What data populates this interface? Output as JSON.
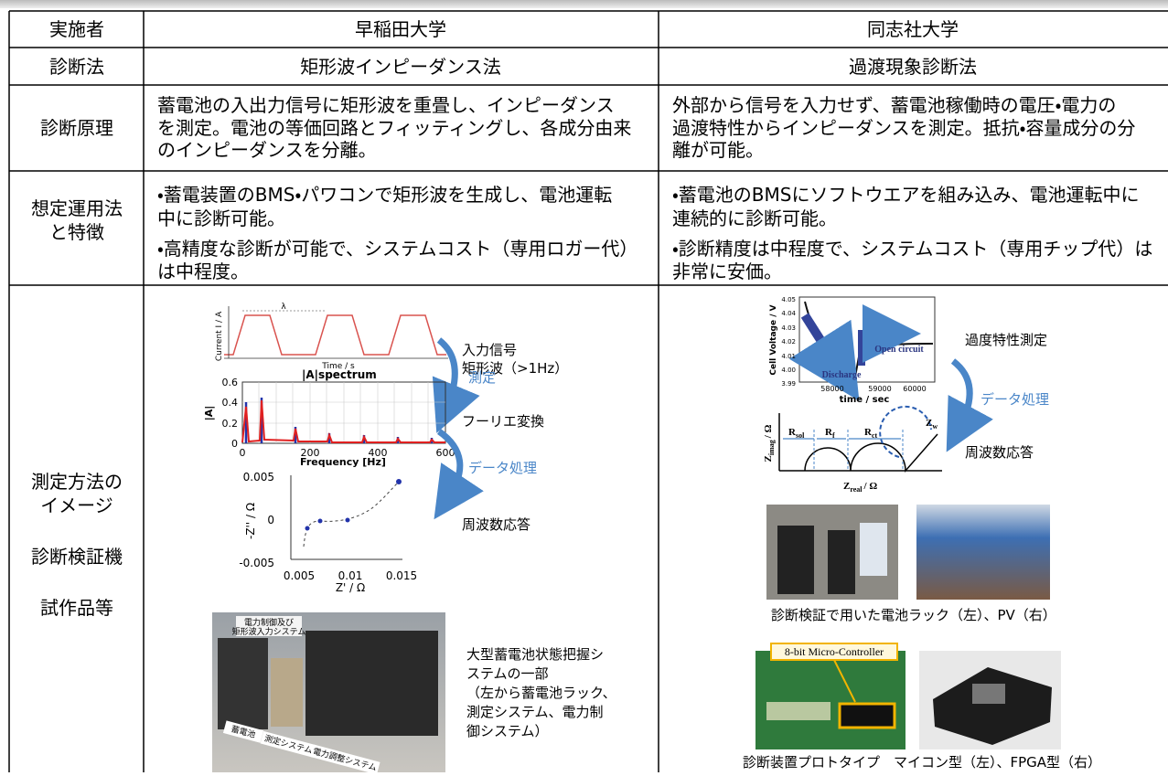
{
  "table": {
    "header": [
      "実施者",
      "早稲田大学",
      "同志社大学"
    ],
    "rows": [
      {
        "label": [
          "診断法"
        ],
        "waseda": [
          "矩形波インピーダンス法"
        ],
        "doshisha": [
          "過渡現象診断法"
        ]
      },
      {
        "label": [
          "診断原理"
        ],
        "waseda": [
          "蓄電池の入出力信号に矩形波を重畳し、インピーダンス",
          "を測定。電池の等価回路とフィッティングし、各成分由来",
          "のインピーダンスを分離。"
        ],
        "doshisha": [
          "外部から信号を入力せず、蓄電池稼働時の電圧・電力の",
          "過渡特性からインピーダンスを測定。抵抗・容量成分の分",
          "離が可能。"
        ]
      },
      {
        "label": [
          "想定運用法",
          "と特徴"
        ],
        "waseda": [
          "・蓄電装置のBMS・パワコンで矩形波を生成し、電池運転",
          "中に診断可能。",
          "・高精度な診断が可能で、システムコスト（専用ロガー代）",
          "は中程度。"
        ],
        "doshisha": [
          "・蓄電池のBMSにソフトウエアを組み込み、電池運転中に",
          "連続的に診断可能。",
          "・診断精度は中程度で、システムコスト（専用チップ代）は",
          "非常に安価。"
        ]
      }
    ]
  },
  "image_row": {
    "label": [
      "測定方法の",
      "イメージ",
      "診断検証機",
      "試作品等"
    ],
    "waseda": {
      "wave": {
        "x_label": "Time / s",
        "y_label": "Current I / A",
        "period": "λ"
      },
      "input_signal": "入力信号",
      "rect_wave": "矩形波（>1Hz）",
      "measure": "測定",
      "spectrum": {
        "title": "|A|spectrum",
        "x_label": "Frequency [Hz]",
        "y_label": "|A|",
        "yticks": [
          "0.6",
          "0.4",
          "0.2",
          "0"
        ],
        "xticks": [
          "0",
          "200",
          "400",
          "600"
        ]
      },
      "fourier": "フーリエ変換",
      "processing": "データ処理",
      "nyquist": {
        "x_label": "Z' / Ω",
        "y_label": "-Z'' / Ω",
        "yticks": [
          "0.005",
          "0",
          "-0.005"
        ],
        "xticks": [
          "0.005",
          "0.01",
          "0.015"
        ]
      },
      "freq_response": "周波数応答",
      "photo": {
        "sign": [
          "電力制御及び",
          "矩形波入力システム"
        ],
        "tags": [
          "蓄電池",
          "測定システム",
          "電力調整システム"
        ]
      },
      "caption": [
        "大型蓄電池状態把握シ",
        "ステムの一部",
        "（左から蓄電池ラック、",
        "測定システム、電力制",
        "御システム）"
      ]
    },
    "doshisha": {
      "voltage": {
        "y_label": "Cell Voltage / V",
        "x_label": "time / sec",
        "yticks": [
          "4.05",
          "4.04",
          "4.03",
          "4.02",
          "4.01",
          "4.00",
          "3.99"
        ],
        "xticks": [
          "58000",
          "59000",
          "60000"
        ],
        "open": "Open circuit",
        "discharge": "Discharge"
      },
      "transient": "過度特性測定",
      "processing": "データ処理",
      "freq_response": "周波数応答",
      "circuit": {
        "y_label": {
          "main": "Z",
          "sub": "imag",
          "unit": "/ Ω"
        },
        "x_label": {
          "main": "Z",
          "sub": "real",
          "unit": "/ Ω"
        },
        "elements": [
          {
            "main": "R",
            "sub": "sol"
          },
          {
            "main": "R",
            "sub": "f"
          },
          {
            "main": "R",
            "sub": "ct"
          },
          {
            "main": "Z",
            "sub": "w"
          }
        ]
      },
      "caption1": "診断検証で用いた電池ラック（左）、PV（右）",
      "mcu": "8-bit Micro-Controller",
      "caption2": "診断装置プロトタイプ　マイコン型（左）、FPGA型（右）"
    }
  }
}
